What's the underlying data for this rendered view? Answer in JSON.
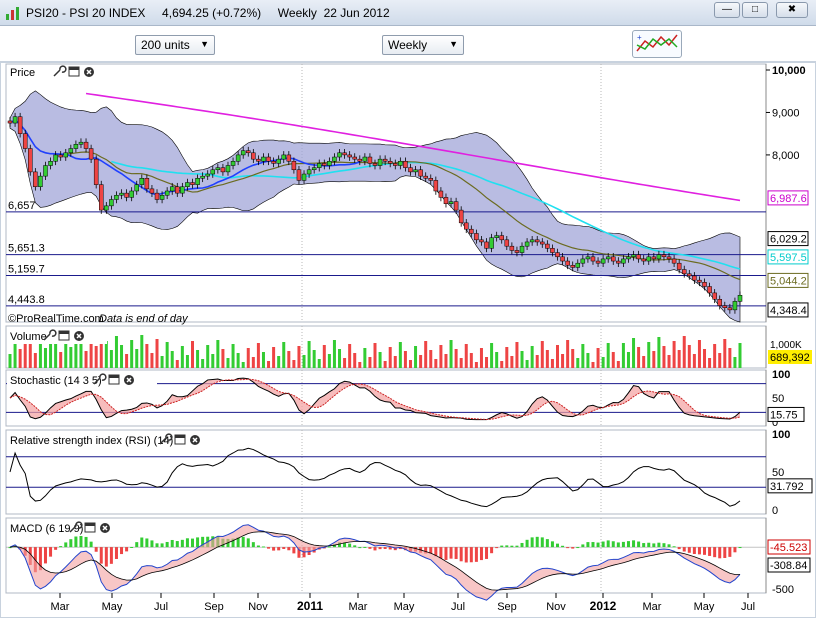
{
  "window": {
    "title": "PSI20 - PSI 20 INDEX     4,694.25 (+0.72%)     Weekly  22 Jun 2012",
    "min_label": "—",
    "max_label": "□",
    "close_label": "✖"
  },
  "toolbar": {
    "units_select": "200 units",
    "period_select": "Weekly"
  },
  "chart_data": {
    "type": "candlestick",
    "instrument": "PSI20 - PSI 20 INDEX",
    "last": "4,694.25",
    "change": "(+0.72%)",
    "period": "Weekly",
    "date": "22 Jun 2012",
    "x_ticks": [
      "Mar",
      "May",
      "Jul",
      "Sep",
      "Nov",
      "2011",
      "Mar",
      "May",
      "Jul",
      "Sep",
      "Nov",
      "2012",
      "Mar",
      "May",
      "Jul"
    ],
    "price_panel": {
      "label": "Price",
      "ylim": [
        4300,
        10000
      ],
      "y_ticks": [
        "10,000",
        "9,000",
        "8,000"
      ],
      "hlines": [
        {
          "label_left": "6,657",
          "value": 6657
        },
        {
          "label_left": "5,651.3",
          "value": 5651.3
        },
        {
          "label_left": "5,159.7",
          "value": 5159.7
        },
        {
          "label_left": "4,443.8",
          "value": 4443.8
        }
      ],
      "right_labels": [
        {
          "text": "6,987.6",
          "color": "#cc00cc",
          "value": 6987.6
        },
        {
          "text": "6,029.2",
          "color": "#000000",
          "value": 6029.2
        },
        {
          "text": "5,597.5",
          "color": "#00cccc",
          "value": 5597.5
        },
        {
          "text": "5,044.2",
          "color": "#6b6b20",
          "value": 5044.2
        },
        {
          "text": "4,348.4",
          "color": "#000000",
          "value": 4348.4
        }
      ],
      "footer": "©ProRealTime.com",
      "footer_italic": "Data is end of day",
      "closes": [
        8750,
        8900,
        8500,
        8150,
        7600,
        7250,
        7500,
        7750,
        7850,
        8000,
        7950,
        8050,
        8150,
        8250,
        8300,
        8150,
        7900,
        7300,
        6700,
        6800,
        6950,
        7050,
        7100,
        7000,
        7150,
        7300,
        7450,
        7200,
        7100,
        6950,
        7050,
        7150,
        7250,
        7100,
        7250,
        7350,
        7300,
        7450,
        7500,
        7550,
        7650,
        7700,
        7600,
        7750,
        7850,
        8000,
        8100,
        8050,
        7900,
        7850,
        7950,
        7850,
        7800,
        7900,
        8000,
        7850,
        7650,
        7400,
        7550,
        7650,
        7700,
        7800,
        7750,
        7850,
        7950,
        8050,
        8000,
        7950,
        7900,
        7850,
        7950,
        7800,
        7750,
        7900,
        7850,
        7800,
        7750,
        7850,
        7700,
        7600,
        7650,
        7500,
        7450,
        7400,
        7150,
        7000,
        6850,
        6900,
        6700,
        6400,
        6250,
        6150,
        6000,
        5950,
        5800,
        6050,
        6100,
        6000,
        5850,
        5750,
        5700,
        5850,
        5950,
        6000,
        5950,
        5900,
        5800,
        5700,
        5600,
        5500,
        5400,
        5350,
        5450,
        5550,
        5600,
        5500,
        5450,
        5550,
        5600,
        5500,
        5450,
        5550,
        5600,
        5650,
        5550,
        5500,
        5600,
        5550,
        5650,
        5600,
        5550,
        5450,
        5300,
        5200,
        5150,
        5050,
        5000,
        4900,
        4750,
        4600,
        4450,
        4400,
        4350,
        4550,
        4694
      ]
    },
    "volume_panel": {
      "label": "Volume",
      "right_label": "689,392",
      "right_label_partial": "1,000K"
    },
    "stochastic_panel": {
      "label": "Stochastic (14 3 5)",
      "y_ticks": [
        "100",
        "50",
        "0"
      ],
      "last": "15.75"
    },
    "rsi_panel": {
      "label": "Relative strength index (RSI) (14)",
      "y_ticks": [
        "100",
        "50",
        "0"
      ],
      "last": "31.792"
    },
    "macd_panel": {
      "label": "MACD (6 19 9)",
      "y_ticks": [
        "-500"
      ],
      "right_labels": [
        {
          "text": "-45.523",
          "color": "#cc0000"
        },
        {
          "text": "-308.84",
          "color": "#000000"
        }
      ]
    }
  },
  "colors": {
    "bull": "#33cc33",
    "bear": "#ee4444",
    "band_fill": "#9b9fd6",
    "ma_long": "#e020e0",
    "ma_cyan": "#20e0f0",
    "ma_olive": "#6b6b20",
    "ma_blue": "#2040ff"
  }
}
